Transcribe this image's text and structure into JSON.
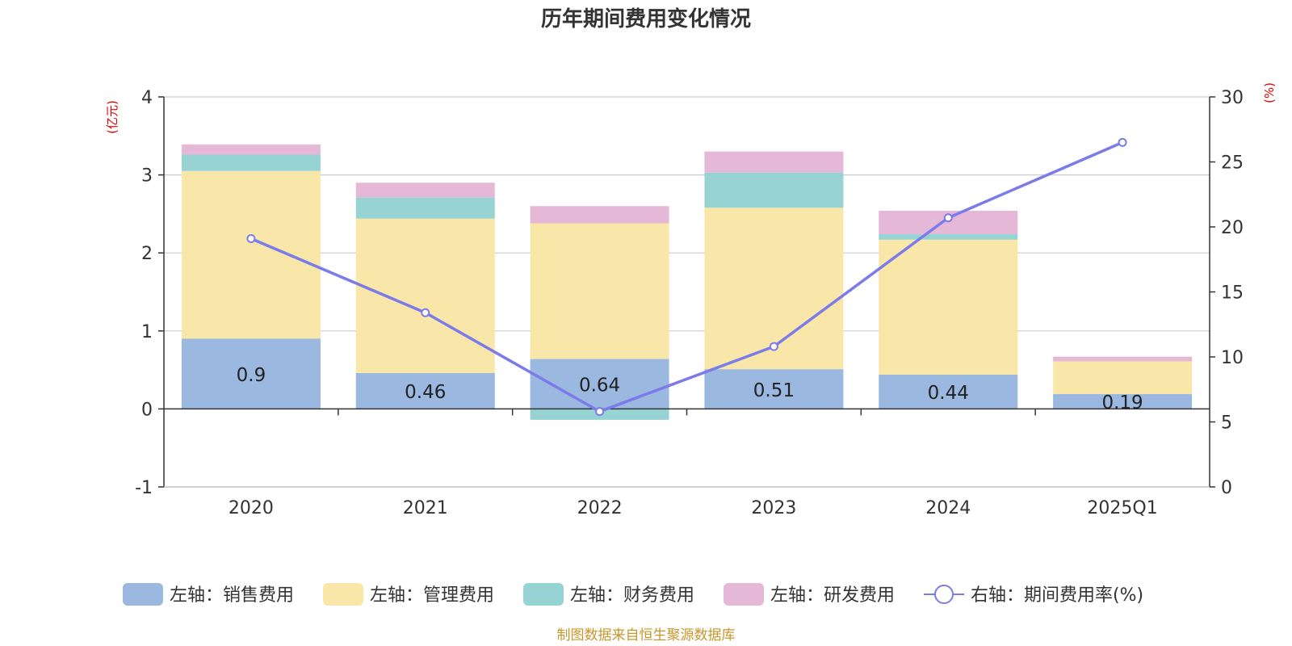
{
  "chart_data": {
    "type": "bar",
    "title": "历年期间费用变化情况",
    "categories": [
      "2020",
      "2021",
      "2022",
      "2023",
      "2024",
      "2025Q1"
    ],
    "left_axis": {
      "unit": "(亿元)",
      "min": -1,
      "max": 4,
      "ticks": [
        -1,
        0,
        1,
        2,
        3,
        4
      ]
    },
    "right_axis": {
      "unit": "(%)",
      "min": 0,
      "max": 30,
      "ticks": [
        0,
        5,
        10,
        15,
        20,
        25,
        30
      ]
    },
    "series": [
      {
        "name": "左轴：销售费用",
        "axis": "left",
        "kind": "bar",
        "color": "#9bb8e0",
        "values": [
          0.9,
          0.46,
          0.64,
          0.51,
          0.44,
          0.19
        ],
        "labels": [
          "0.9",
          "0.46",
          "0.64",
          "0.51",
          "0.44",
          "0.19"
        ]
      },
      {
        "name": "左轴：管理费用",
        "axis": "left",
        "kind": "bar",
        "color": "#f8e7a8",
        "values": [
          2.15,
          1.98,
          1.74,
          2.07,
          1.73,
          0.42
        ]
      },
      {
        "name": "左轴：财务费用",
        "axis": "left",
        "kind": "bar",
        "color": "#98d3d4",
        "values": [
          0.21,
          0.27,
          -0.14,
          0.45,
          0.07,
          0.0
        ]
      },
      {
        "name": "左轴：研发费用",
        "axis": "left",
        "kind": "bar",
        "color": "#e6b8d8",
        "values": [
          0.13,
          0.19,
          0.22,
          0.27,
          0.3,
          0.06
        ]
      },
      {
        "name": "右轴：期间费用率(%)",
        "axis": "right",
        "kind": "line",
        "color": "#7b7bea",
        "values": [
          19.1,
          13.4,
          5.8,
          10.8,
          20.7,
          26.5
        ]
      }
    ],
    "grid": true,
    "legend_position": "bottom"
  },
  "source": "制图数据来自恒生聚源数据库"
}
